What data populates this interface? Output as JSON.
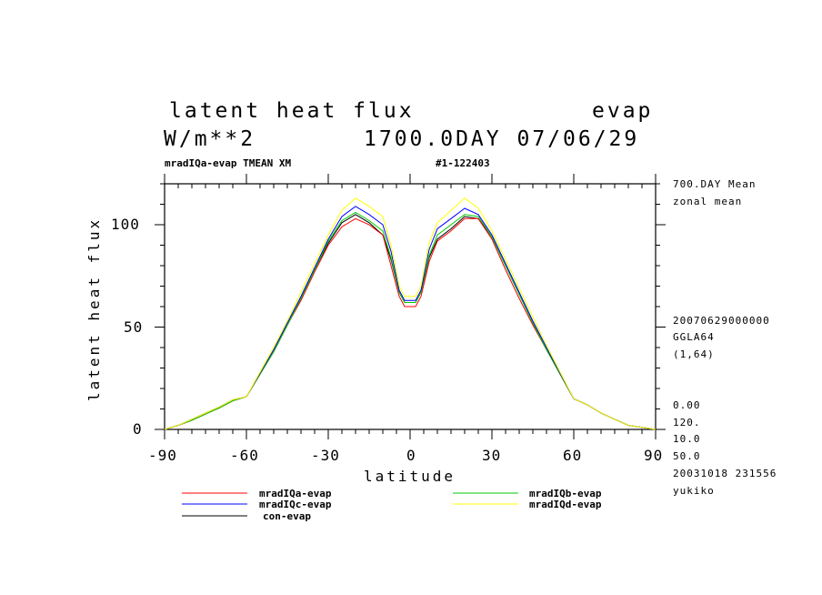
{
  "header": {
    "title_left": "latent heat flux",
    "title_right": "evap",
    "units": "W/m**2",
    "time_info": "1700.0DAY 07/06/29",
    "sub_left": "mradIQa-evap TMEAN XM",
    "sub_right": "#1-122403"
  },
  "side_info": {
    "mean": "700.DAY Mean",
    "zonal": "zonal mean",
    "date": "20070629000000",
    "grid": "GGLA64",
    "index": "(1,64)",
    "v1": "0.00",
    "v2": "120.",
    "v3": "10.0",
    "v4": "50.0",
    "stamp": "20031018 231556",
    "user": "yukiko"
  },
  "legend": {
    "items": [
      {
        "label": "mradIQa-evap",
        "color": "#ff0000"
      },
      {
        "label": "mradIQb-evap",
        "color": "#00cc00"
      },
      {
        "label": "mradIQc-evap",
        "color": "#0000ff"
      },
      {
        "label": "mradIQd-evap",
        "color": "#ffff00"
      },
      {
        "label": "con-evap",
        "color": "#000000"
      }
    ]
  },
  "chart_data": {
    "type": "line",
    "title": "latent heat flux",
    "xlabel": "latitude",
    "ylabel": "latent heat flux",
    "xlim": [
      -90,
      90
    ],
    "ylim": [
      0,
      120
    ],
    "xticks": [
      -90,
      -60,
      -30,
      0,
      30,
      60,
      90
    ],
    "xtick_labels": [
      "-90",
      "-60",
      "-30",
      "0",
      "30",
      "60",
      "90"
    ],
    "yticks": [
      0,
      50,
      100
    ],
    "ytick_labels": [
      "0",
      "50",
      "100"
    ],
    "x": [
      -90,
      -85,
      -80,
      -75,
      -70,
      -65,
      -60,
      -55,
      -50,
      -45,
      -40,
      -35,
      -30,
      -25,
      -20,
      -15,
      -10,
      -7,
      -4,
      -2,
      0,
      2,
      4,
      7,
      10,
      15,
      20,
      25,
      30,
      35,
      40,
      45,
      50,
      55,
      60,
      65,
      70,
      75,
      80,
      85,
      90
    ],
    "series": [
      {
        "name": "con-evap",
        "color": "#000000",
        "values": [
          0,
          2,
          4.5,
          7.5,
          10.5,
          14,
          16,
          27,
          38,
          51,
          64,
          78,
          91,
          101,
          105,
          101,
          95,
          83,
          67,
          62,
          62,
          62,
          67,
          84,
          93,
          98,
          104,
          103,
          94,
          80,
          66,
          52,
          39,
          27,
          15,
          12,
          8,
          5,
          2,
          1,
          0
        ]
      },
      {
        "name": "mradIQa-evap",
        "color": "#ff0000",
        "values": [
          0,
          2,
          4.5,
          7.5,
          10.5,
          14,
          16,
          27,
          38,
          51,
          63,
          77,
          90,
          99,
          103,
          100,
          95,
          80,
          65,
          60,
          60,
          60,
          65,
          82,
          92,
          97,
          103,
          103,
          93,
          78,
          64,
          51,
          39,
          27,
          15,
          12,
          8,
          5,
          2,
          1,
          0
        ]
      },
      {
        "name": "mradIQb-evap",
        "color": "#00cc00",
        "values": [
          0,
          2,
          4.5,
          7.5,
          10.5,
          14,
          16,
          27,
          38,
          51,
          64,
          78,
          92,
          102,
          106,
          102,
          97,
          84,
          67,
          62,
          62,
          62,
          67,
          85,
          95,
          100,
          105,
          104,
          94,
          80,
          66,
          52,
          39,
          27,
          15,
          12,
          8,
          5,
          2,
          1,
          0
        ]
      },
      {
        "name": "mradIQc-evap",
        "color": "#0000ff",
        "values": [
          0,
          2,
          5,
          8,
          11,
          14.5,
          16,
          27.5,
          39,
          52,
          65,
          79,
          93,
          104,
          109,
          105,
          100,
          87,
          68,
          63,
          63,
          63,
          68,
          88,
          98,
          103,
          108,
          105,
          95,
          81,
          67,
          53,
          40,
          27.5,
          15,
          12,
          8,
          5,
          2,
          1,
          0
        ]
      },
      {
        "name": "mradIQd-evap",
        "color": "#ffff00",
        "values": [
          0,
          2,
          5,
          8,
          11,
          14.5,
          16,
          28,
          40,
          53,
          67,
          81,
          95,
          107,
          113,
          109,
          104,
          90,
          70,
          65,
          65,
          65,
          70,
          91,
          101,
          107,
          113,
          108,
          97,
          83,
          69,
          55,
          41,
          28,
          15,
          12,
          8,
          5,
          2,
          1,
          0
        ]
      }
    ],
    "grid": false,
    "legend_position": "bottom"
  }
}
